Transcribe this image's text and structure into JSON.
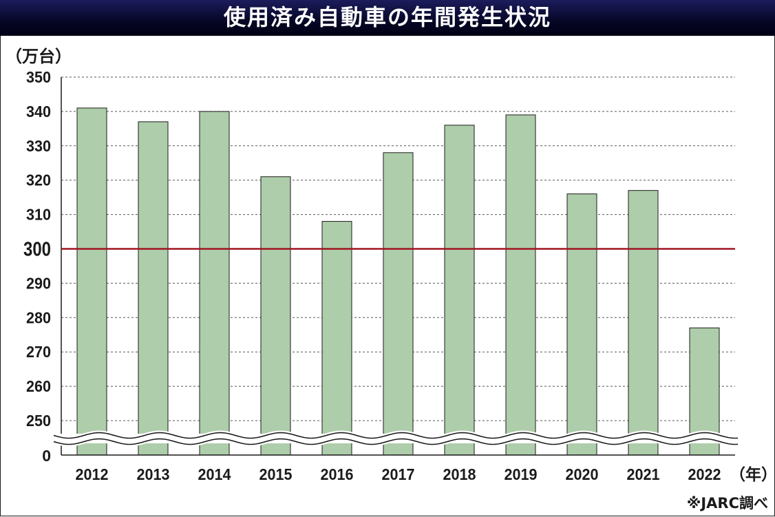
{
  "chart_data": {
    "type": "bar",
    "title": "使用済み自動車の年間発生状況",
    "ylabel": "（万台）",
    "xlabel": "（年）",
    "categories": [
      "2012",
      "2013",
      "2014",
      "2015",
      "2016",
      "2017",
      "2018",
      "2019",
      "2020",
      "2021",
      "2022"
    ],
    "values": [
      341,
      337,
      340,
      321,
      308,
      328,
      336,
      339,
      316,
      317,
      277
    ],
    "ylim": [
      245,
      350
    ],
    "y_axis_break": "between 0 and 250",
    "y_ticks": [
      350,
      340,
      330,
      320,
      310,
      300,
      290,
      280,
      270,
      260,
      250
    ],
    "y_tick_labels": [
      "350",
      "340",
      "330",
      "320",
      "310",
      "300",
      "290",
      "280",
      "270",
      "260",
      "250"
    ],
    "y_zero_label": "0",
    "reference_line": {
      "value": 300,
      "color": "#a01420"
    },
    "grid": "dashed horizontal",
    "bar_color": "#aecdaa",
    "source": "※JARC調べ"
  }
}
